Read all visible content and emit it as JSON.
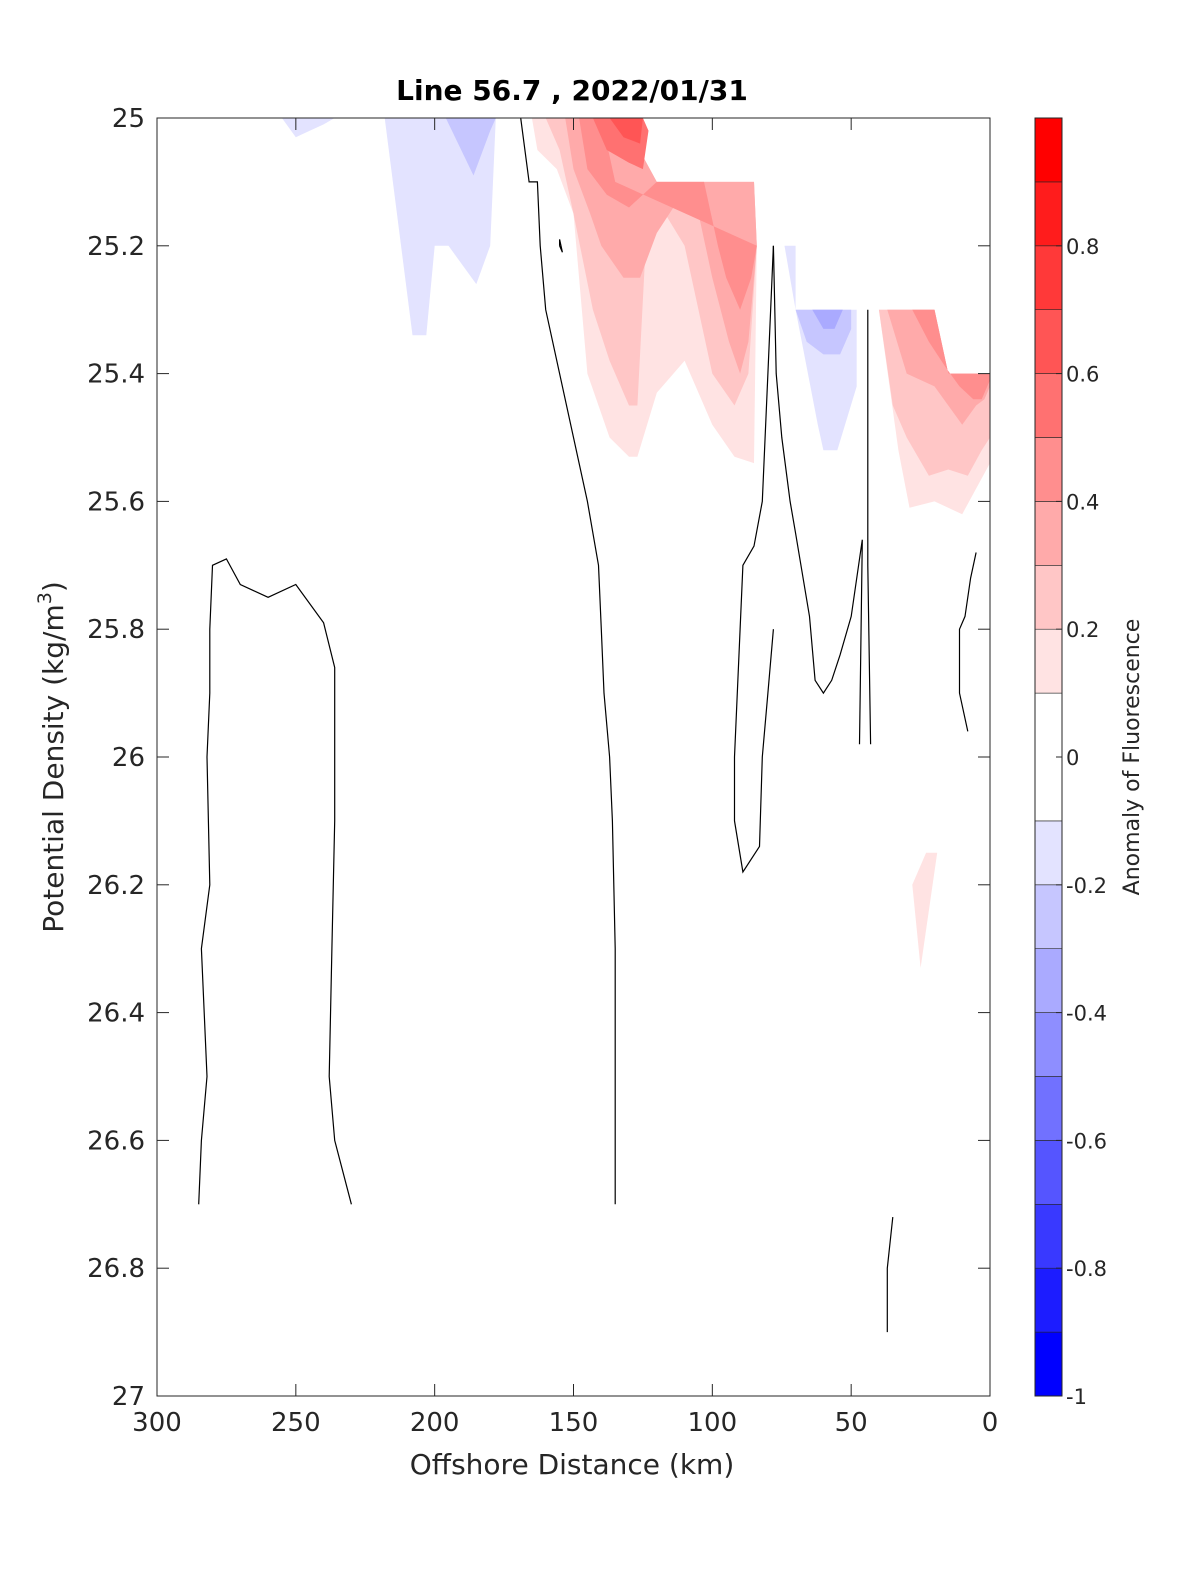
{
  "chart_data": {
    "type": "contour",
    "title": "Line 56.7 , 2022/01/31",
    "xlabel": "Offshore Distance (km)",
    "ylabel_main": "Potential Density (kg/m",
    "ylabel_sup": "3",
    "ylabel_tail": ")",
    "xlim": [
      300,
      0
    ],
    "ylim": [
      25,
      27
    ],
    "x_ticks": [
      300,
      250,
      200,
      150,
      100,
      50,
      0
    ],
    "x_tick_labels": [
      "300",
      "250",
      "200",
      "150",
      "100",
      "50",
      "0"
    ],
    "y_ticks": [
      25,
      25.2,
      25.4,
      25.6,
      25.8,
      26,
      26.2,
      26.4,
      26.6,
      26.8,
      27
    ],
    "y_tick_labels": [
      "25",
      "25.2",
      "25.4",
      "25.6",
      "25.8",
      "26",
      "26.2",
      "26.4",
      "26.6",
      "26.8",
      "27"
    ],
    "colorbar": {
      "label": "Anomaly of Fluorescence",
      "range": [
        -1,
        1
      ],
      "levels": [
        -1,
        -0.9,
        -0.8,
        -0.7,
        -0.6,
        -0.5,
        -0.4,
        -0.3,
        -0.2,
        -0.1,
        0.1,
        0.2,
        0.3,
        0.4,
        0.5,
        0.6,
        0.7,
        0.8,
        0.9,
        1
      ],
      "tick_values": [
        -1,
        -0.8,
        -0.6,
        -0.4,
        -0.2,
        0,
        0.2,
        0.4,
        0.6,
        0.8
      ],
      "tick_labels": [
        "-1",
        "-0.8",
        "-0.6",
        "-0.4",
        "-0.2",
        "0",
        "0.2",
        "0.4",
        "0.6",
        "0.8"
      ],
      "colors": [
        "#0000ff",
        "#1c1cff",
        "#3939ff",
        "#5555ff",
        "#7171ff",
        "#8e8eff",
        "#aaaaff",
        "#c6c6ff",
        "#e3e3ff",
        "#ffffff",
        "#ffe3e3",
        "#ffc6c6",
        "#ffaaaa",
        "#ff8e8e",
        "#ff7171",
        "#ff5555",
        "#ff3939",
        "#ff1c1c",
        "#ff0000"
      ]
    },
    "filled_regions": [
      {
        "value": -0.15,
        "points": [
          [
            218,
            25
          ],
          [
            208,
            25.34
          ],
          [
            203,
            25.34
          ],
          [
            200,
            25.2
          ],
          [
            195,
            25.2
          ],
          [
            185,
            25.26
          ],
          [
            180,
            25.2
          ],
          [
            178,
            25
          ],
          [
            218,
            25
          ]
        ]
      },
      {
        "value": -0.25,
        "points": [
          [
            196,
            25
          ],
          [
            186,
            25.09
          ],
          [
            180,
            25.02
          ],
          [
            178,
            25
          ],
          [
            196,
            25
          ]
        ]
      },
      {
        "value": -0.15,
        "points": [
          [
            255,
            25
          ],
          [
            250,
            25.03
          ],
          [
            245,
            25.02
          ],
          [
            240,
            25.01
          ],
          [
            236,
            25
          ],
          [
            255,
            25
          ]
        ]
      },
      {
        "value": 0.15,
        "points": [
          [
            165,
            25
          ],
          [
            163,
            25.05
          ],
          [
            156,
            25.08
          ],
          [
            150,
            25.15
          ],
          [
            145,
            25.4
          ],
          [
            137,
            25.5
          ],
          [
            130,
            25.53
          ],
          [
            127,
            25.53
          ],
          [
            120,
            25.43
          ],
          [
            110,
            25.38
          ],
          [
            100,
            25.48
          ],
          [
            92,
            25.53
          ],
          [
            85,
            25.54
          ],
          [
            84,
            25.2
          ],
          [
            85,
            25.1
          ],
          [
            120,
            25.1
          ],
          [
            130,
            25.02
          ],
          [
            133,
            25
          ],
          [
            165,
            25
          ]
        ]
      },
      {
        "value": 0.25,
        "points": [
          [
            160,
            25
          ],
          [
            155,
            25.05
          ],
          [
            150,
            25.15
          ],
          [
            143,
            25.3
          ],
          [
            137,
            25.38
          ],
          [
            130,
            25.45
          ],
          [
            127,
            25.45
          ],
          [
            124,
            25.2
          ],
          [
            117,
            25.15
          ],
          [
            110,
            25.2
          ],
          [
            100,
            25.4
          ],
          [
            92,
            25.45
          ],
          [
            87,
            25.4
          ],
          [
            84,
            25.2
          ],
          [
            85,
            25.1
          ],
          [
            120,
            25.1
          ],
          [
            130,
            25.02
          ],
          [
            133,
            25
          ],
          [
            160,
            25
          ]
        ]
      },
      {
        "value": 0.35,
        "points": [
          [
            153,
            25
          ],
          [
            150,
            25.08
          ],
          [
            144,
            25.15
          ],
          [
            140,
            25.2
          ],
          [
            132,
            25.25
          ],
          [
            126,
            25.25
          ],
          [
            120,
            25.18
          ],
          [
            108,
            25.1
          ],
          [
            105,
            25.15
          ],
          [
            100,
            25.25
          ],
          [
            94,
            25.35
          ],
          [
            90,
            25.4
          ],
          [
            87,
            25.35
          ],
          [
            84,
            25.2
          ],
          [
            85,
            25.1
          ],
          [
            120,
            25.1
          ],
          [
            130,
            25.02
          ],
          [
            133,
            25
          ],
          [
            153,
            25
          ]
        ]
      },
      {
        "value": 0.45,
        "points": [
          [
            148,
            25
          ],
          [
            145,
            25.08
          ],
          [
            138,
            25.12
          ],
          [
            130,
            25.14
          ],
          [
            120,
            25.1
          ],
          [
            103,
            25.1
          ],
          [
            98,
            25.2
          ],
          [
            95,
            25.25
          ],
          [
            90,
            25.3
          ],
          [
            86,
            25.25
          ],
          [
            84,
            25.2
          ],
          [
            135,
            25.1
          ],
          [
            140,
            25
          ],
          [
            148,
            25
          ]
        ]
      },
      {
        "value": 0.55,
        "points": [
          [
            143,
            25
          ],
          [
            138,
            25.05
          ],
          [
            130,
            25.07
          ],
          [
            125,
            25.08
          ],
          [
            123,
            25.02
          ],
          [
            125,
            25
          ],
          [
            143,
            25
          ]
        ]
      },
      {
        "value": 0.65,
        "points": [
          [
            137,
            25
          ],
          [
            132,
            25.03
          ],
          [
            126,
            25.04
          ],
          [
            125,
            25
          ],
          [
            137,
            25
          ]
        ]
      },
      {
        "value": 0.15,
        "points": [
          [
            40,
            25.3
          ],
          [
            33,
            25.52
          ],
          [
            29,
            25.61
          ],
          [
            20,
            25.6
          ],
          [
            15,
            25.61
          ],
          [
            10,
            25.62
          ],
          [
            5,
            25.58
          ],
          [
            0,
            25.54
          ],
          [
            0,
            25.4
          ],
          [
            15,
            25.4
          ],
          [
            20,
            25.3
          ],
          [
            40,
            25.3
          ]
        ]
      },
      {
        "value": 0.25,
        "points": [
          [
            40,
            25.3
          ],
          [
            35,
            25.45
          ],
          [
            30,
            25.5
          ],
          [
            22,
            25.56
          ],
          [
            15,
            25.55
          ],
          [
            8,
            25.56
          ],
          [
            3,
            25.52
          ],
          [
            0,
            25.5
          ],
          [
            0,
            25.4
          ],
          [
            15,
            25.4
          ],
          [
            20,
            25.3
          ],
          [
            40,
            25.3
          ]
        ]
      },
      {
        "value": 0.35,
        "points": [
          [
            37,
            25.3
          ],
          [
            30,
            25.4
          ],
          [
            20,
            25.42
          ],
          [
            15,
            25.45
          ],
          [
            10,
            25.48
          ],
          [
            5,
            25.45
          ],
          [
            2,
            25.44
          ],
          [
            0,
            25.42
          ],
          [
            0,
            25.4
          ],
          [
            15,
            25.4
          ],
          [
            20,
            25.3
          ],
          [
            37,
            25.3
          ]
        ]
      },
      {
        "value": 0.45,
        "points": [
          [
            28,
            25.3
          ],
          [
            22,
            25.35
          ],
          [
            16,
            25.39
          ],
          [
            11,
            25.42
          ],
          [
            6,
            25.44
          ],
          [
            3,
            25.44
          ],
          [
            0,
            25.41
          ],
          [
            0,
            25.4
          ],
          [
            15,
            25.4
          ],
          [
            20,
            25.3
          ],
          [
            28,
            25.3
          ]
        ]
      },
      {
        "value": 0.15,
        "points": [
          [
            28,
            26.2
          ],
          [
            23,
            26.15
          ],
          [
            19,
            26.15
          ],
          [
            25,
            26.33
          ],
          [
            28,
            26.2
          ]
        ]
      },
      {
        "value": -0.15,
        "points": [
          [
            74,
            25.2
          ],
          [
            70,
            25.3
          ],
          [
            62,
            25.48
          ],
          [
            60,
            25.52
          ],
          [
            55,
            25.52
          ],
          [
            48,
            25.42
          ],
          [
            48,
            25.3
          ],
          [
            70,
            25.3
          ],
          [
            70,
            25.2
          ],
          [
            74,
            25.2
          ]
        ]
      },
      {
        "value": -0.25,
        "points": [
          [
            70,
            25.3
          ],
          [
            66,
            25.35
          ],
          [
            60,
            25.37
          ],
          [
            54,
            25.37
          ],
          [
            50,
            25.33
          ],
          [
            50,
            25.3
          ],
          [
            70,
            25.3
          ]
        ]
      },
      {
        "value": -0.35,
        "points": [
          [
            64,
            25.3
          ],
          [
            60,
            25.33
          ],
          [
            56,
            25.33
          ],
          [
            53,
            25.3
          ],
          [
            64,
            25.3
          ]
        ]
      }
    ],
    "contour_lines": [
      {
        "value": 0,
        "points": [
          [
            169,
            25
          ],
          [
            166,
            25.1
          ],
          [
            163,
            25.1
          ],
          [
            162,
            25.2
          ],
          [
            160,
            25.3
          ],
          [
            155,
            25.4
          ],
          [
            150,
            25.5
          ],
          [
            145,
            25.6
          ],
          [
            141,
            25.7
          ],
          [
            140,
            25.8
          ],
          [
            139,
            25.9
          ],
          [
            137,
            26
          ],
          [
            136,
            26.1
          ],
          [
            135,
            26.3
          ],
          [
            135,
            26.5
          ],
          [
            135,
            26.7
          ]
        ]
      },
      {
        "value": 0,
        "points": [
          [
            285,
            26.7
          ],
          [
            284,
            26.6
          ],
          [
            282,
            26.5
          ],
          [
            283,
            26.4
          ],
          [
            284,
            26.3
          ],
          [
            281,
            26.2
          ],
          [
            282,
            26
          ],
          [
            281,
            25.9
          ],
          [
            281,
            25.8
          ],
          [
            280,
            25.7
          ],
          [
            275,
            25.69
          ],
          [
            270,
            25.73
          ],
          [
            265,
            25.74
          ],
          [
            260,
            25.75
          ],
          [
            250,
            25.73
          ],
          [
            240,
            25.79
          ],
          [
            236,
            25.86
          ],
          [
            236,
            26.1
          ],
          [
            237,
            26.3
          ],
          [
            238,
            26.5
          ],
          [
            236,
            26.6
          ],
          [
            230,
            26.7
          ]
        ]
      },
      {
        "value": 0,
        "points": [
          [
            78,
            25.2
          ],
          [
            77,
            25.4
          ],
          [
            75,
            25.5
          ],
          [
            72,
            25.6
          ],
          [
            70,
            25.65
          ],
          [
            65,
            25.78
          ],
          [
            63,
            25.88
          ],
          [
            60,
            25.9
          ],
          [
            57,
            25.88
          ],
          [
            54,
            25.84
          ],
          [
            50,
            25.78
          ],
          [
            46,
            25.66
          ],
          [
            47,
            25.98
          ]
        ]
      },
      {
        "value": 0,
        "points": [
          [
            78,
            25.2
          ],
          [
            80,
            25.4
          ],
          [
            82,
            25.6
          ],
          [
            85,
            25.67
          ],
          [
            89,
            25.7
          ],
          [
            90,
            25.8
          ],
          [
            92,
            26
          ],
          [
            92,
            26.1
          ],
          [
            89,
            26.18
          ],
          [
            83,
            26.14
          ],
          [
            82,
            26
          ],
          [
            80,
            25.9
          ],
          [
            78,
            25.8
          ]
        ]
      },
      {
        "value": 0,
        "points": [
          [
            44,
            25.3
          ],
          [
            44,
            25.5
          ],
          [
            44,
            25.7
          ],
          [
            43,
            25.98
          ]
        ]
      },
      {
        "value": 0,
        "points": [
          [
            5,
            25.68
          ],
          [
            7,
            25.72
          ],
          [
            9,
            25.78
          ],
          [
            11,
            25.8
          ],
          [
            11,
            25.9
          ],
          [
            8,
            25.96
          ]
        ]
      },
      {
        "value": 0,
        "points": [
          [
            35,
            26.72
          ],
          [
            37,
            26.8
          ],
          [
            37,
            26.9
          ]
        ]
      },
      {
        "value": 0,
        "points": [
          [
            155,
            25.2
          ],
          [
            154,
            25.21
          ],
          [
            155,
            25.19
          ],
          [
            155,
            25.2
          ]
        ]
      }
    ]
  }
}
